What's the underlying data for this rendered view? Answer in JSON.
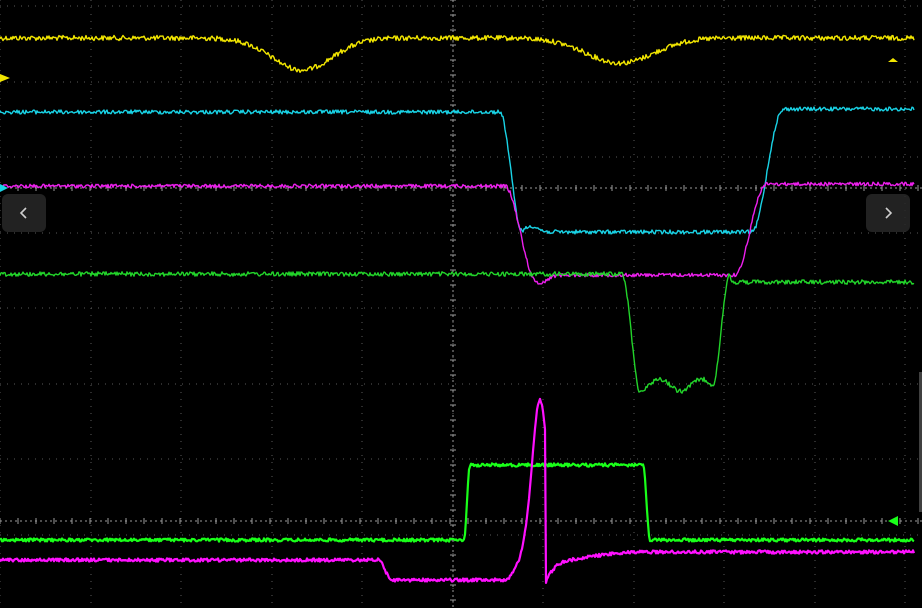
{
  "screen": {
    "background": "#000000",
    "grid_color": "#5a5a5a",
    "axis_color": "#9a9a9a"
  },
  "traces": [
    {
      "name": "yellow",
      "color": "#f2e600",
      "shape": "yellow-dips"
    },
    {
      "name": "cyan",
      "color": "#19d3e6",
      "shape": "cyan-step"
    },
    {
      "name": "magenta-upper",
      "color": "#ee20ee",
      "shape": "magenta-step"
    },
    {
      "name": "green-upper",
      "color": "#22d42a",
      "shape": "green-pulse"
    },
    {
      "name": "green-lower",
      "color": "#19ff19",
      "shape": "green-bright-pulse"
    },
    {
      "name": "magenta-lower",
      "color": "#ff10ff",
      "shape": "magenta-spike"
    }
  ],
  "markers": {
    "yellow_level_color": "#f2e600",
    "green_level_color": "#19ff19",
    "cyan_level_color": "#19d3e6"
  },
  "nav": {
    "prev_icon": "chevron-left-icon",
    "next_icon": "chevron-right-icon",
    "button_color": "#2a2a2a"
  }
}
